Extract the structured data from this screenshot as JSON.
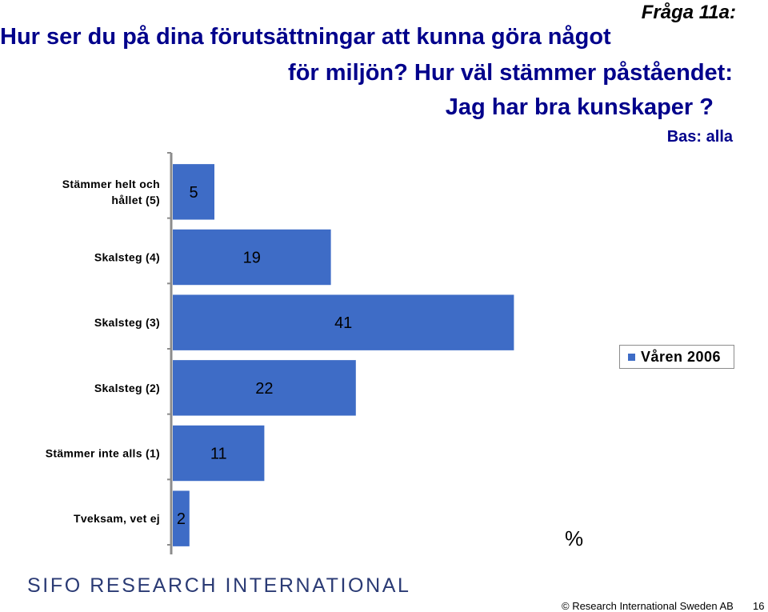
{
  "header": {
    "question_number": "Fråga 11a:",
    "title_line1": "Hur ser du på dina förutsättningar att kunna göra något",
    "title_line2": "för miljön? Hur väl stämmer påståendet:",
    "title_line3": "Jag har bra kunskaper ?",
    "base": "Bas: alla"
  },
  "chart_data": {
    "type": "bar",
    "orientation": "horizontal",
    "categories": [
      "Stämmer helt och hållet (5)",
      "Skalsteg (4)",
      "Skalsteg (3)",
      "Skalsteg (2)",
      "Stämmer inte alls (1)",
      "Tveksam, vet ej"
    ],
    "category_lines": [
      [
        "Stämmer helt och",
        "hållet (5)"
      ],
      [
        "Skalsteg (4)"
      ],
      [
        "Skalsteg (3)"
      ],
      [
        "Skalsteg (2)"
      ],
      [
        "Stämmer inte alls (1)"
      ],
      [
        "Tveksam, vet ej"
      ]
    ],
    "series": [
      {
        "name": "Våren 2006",
        "values": [
          5,
          19,
          41,
          22,
          11,
          2
        ],
        "color": "#3e6cc6"
      }
    ],
    "xlim": [
      0,
      69
    ],
    "unit": "%",
    "legend": "right",
    "grid": false
  },
  "footer": {
    "logo": "SIFO RESEARCH INTERNATIONAL",
    "copyright": "© Research International Sweden AB",
    "page_number": "16"
  }
}
